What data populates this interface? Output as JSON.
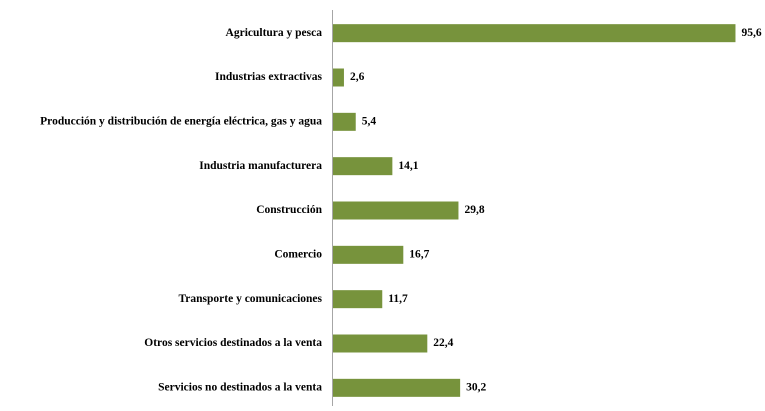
{
  "chart_data": {
    "type": "barh",
    "categories": [
      "Agricultura y pesca",
      "Industrias extractivas",
      "Producción y distribución de energía eléctrica, gas y agua",
      "Industria manufacturera",
      "Construcción",
      "Comercio",
      "Transporte y comunicaciones",
      "Otros servicios destinados a la venta",
      "Servicios no destinados a la venta"
    ],
    "values": [
      95.6,
      2.6,
      5.4,
      14.1,
      29.8,
      16.7,
      11.7,
      22.4,
      30.2
    ],
    "value_labels": [
      "95,6",
      "2,6",
      "5,4",
      "14,1",
      "29,8",
      "16,7",
      "11,7",
      "22,4",
      "30,2"
    ],
    "color": "#77933c",
    "xlim": [
      0,
      100
    ]
  }
}
